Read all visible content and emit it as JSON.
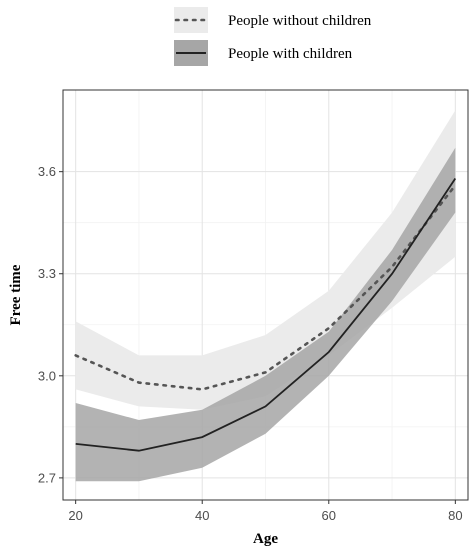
{
  "chart_data": {
    "type": "line",
    "title": "",
    "xlabel": "Age",
    "ylabel": "Free time",
    "xlim": [
      18,
      82
    ],
    "ylim": [
      2.635,
      3.84
    ],
    "x_ticks": [
      20,
      40,
      60,
      80
    ],
    "x_tick_labels": [
      "20",
      "40",
      "60",
      "80"
    ],
    "y_ticks": [
      2.7,
      3.0,
      3.3,
      3.6
    ],
    "y_tick_labels": [
      "2.7",
      "3.0",
      "3.3",
      "3.6"
    ],
    "grid": true,
    "legend_position": "top",
    "x": [
      20,
      30,
      40,
      50,
      60,
      70,
      80
    ],
    "series": [
      {
        "name": "People without children",
        "style": "dotted",
        "line_color": "#555555",
        "band_color": "#ebebeb",
        "values": [
          3.06,
          2.98,
          2.96,
          3.01,
          3.14,
          3.32,
          3.56
        ],
        "lower": [
          2.96,
          2.91,
          2.9,
          2.94,
          3.06,
          3.2,
          3.35
        ],
        "upper": [
          3.16,
          3.06,
          3.06,
          3.12,
          3.25,
          3.48,
          3.78
        ]
      },
      {
        "name": "People with children",
        "style": "solid",
        "line_color": "#222222",
        "band_color": "#a6a6a6",
        "values": [
          2.8,
          2.78,
          2.82,
          2.91,
          3.07,
          3.3,
          3.58
        ],
        "lower": [
          2.69,
          2.69,
          2.73,
          2.83,
          3.0,
          3.22,
          3.48
        ],
        "upper": [
          2.92,
          2.87,
          2.9,
          3.0,
          3.13,
          3.37,
          3.67
        ]
      }
    ]
  },
  "legend": {
    "items": [
      {
        "label": "People without children"
      },
      {
        "label": "People with children"
      }
    ]
  }
}
